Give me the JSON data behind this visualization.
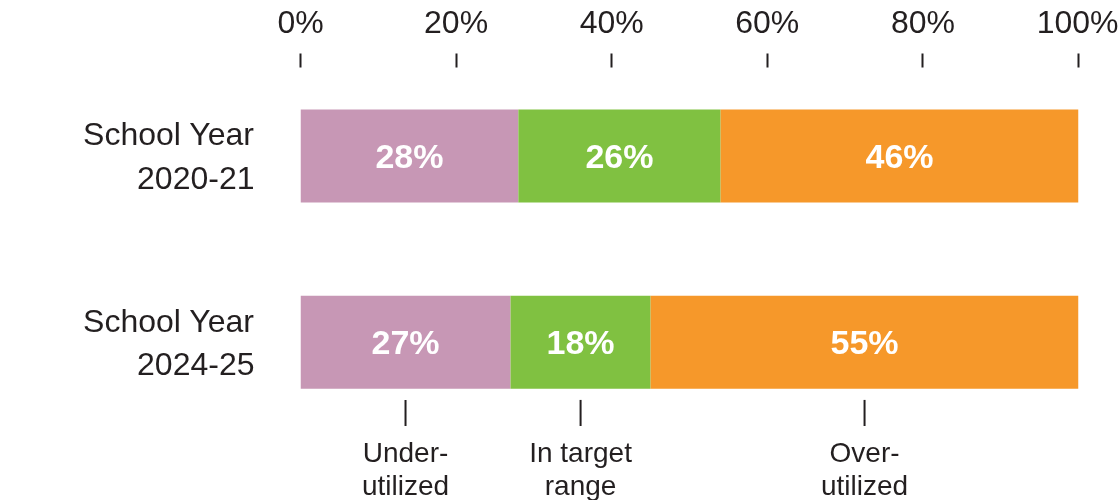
{
  "chart_data": {
    "type": "bar",
    "orientation": "horizontal",
    "stacked": true,
    "categories": [
      "School Year 2020-21",
      "School Year 2024-25"
    ],
    "series": [
      {
        "name": "Under-utilized",
        "color": "#c797b5",
        "values": [
          28,
          27
        ],
        "value_labels": [
          "28%",
          "27%"
        ]
      },
      {
        "name": "In target range",
        "color": "#80c141",
        "values": [
          26,
          18
        ],
        "value_labels": [
          "26%",
          "18%"
        ]
      },
      {
        "name": "Over-utilized",
        "color": "#f6982a",
        "values": [
          46,
          55
        ],
        "value_labels": [
          "46%",
          "55%"
        ]
      }
    ],
    "xlim": [
      0,
      100
    ],
    "xticks": [
      {
        "value": 0,
        "label": "0%"
      },
      {
        "value": 20,
        "label": "20%"
      },
      {
        "value": 40,
        "label": "40%"
      },
      {
        "value": 60,
        "label": "60%"
      },
      {
        "value": 80,
        "label": "80%"
      },
      {
        "value": 100,
        "label": "100%"
      }
    ],
    "grid": false,
    "legend": "bottom"
  }
}
